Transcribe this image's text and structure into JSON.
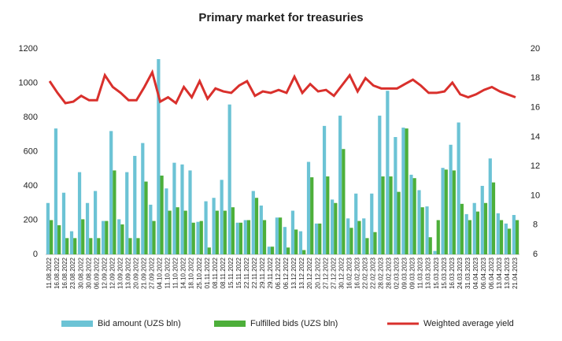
{
  "chart_data": {
    "type": "bar_line",
    "title": "Primary market for treasuries",
    "categories": [
      "11.08.2022",
      "16.08.2022",
      "16.08.2022",
      "23.08.2022",
      "30.08.2022",
      "30.08.2022",
      "06.09.2022",
      "12.09.2022",
      "12.09.2022",
      "13.09.2022",
      "13.09.2022",
      "20.09.2022",
      "21.09.2022",
      "27.09.2022",
      "04.10.2022",
      "11.10.2022",
      "11.10.2022",
      "14.10.2022",
      "18.10.2022",
      "25.10.2022",
      "01.11.2022",
      "08.11.2022",
      "08.11.2022",
      "15.11.2022",
      "15.11.2022",
      "22.11.2022",
      "22.11.2022",
      "29.11.2022",
      "29.11.2022",
      "06.12.2022",
      "06.12.2022",
      "13.12.2022",
      "13.12.2022",
      "20.12.2022",
      "20.12.2022",
      "27.12.2022",
      "27.12.2022",
      "30.12.2022",
      "16.02.2023",
      "16.02.2023",
      "22.02.2023",
      "22.02.2023",
      "28.02.2023",
      "28.02.2023",
      "02.03.2023",
      "09.03.2023",
      "09.03.2023",
      "11.03.2023",
      "13.03.2023",
      "15.03.2023",
      "15.03.2023",
      "16.03.2023",
      "24.03.2023",
      "31.03.2023",
      "04.04.2023",
      "06.04.2023",
      "06.04.2023",
      "13.04.2023",
      "13.04.2023",
      "21.04.2023"
    ],
    "series": [
      {
        "name": "Bid amount (UZS bln)",
        "color": "#6cc3d5",
        "kind": "bar",
        "values": [
          300,
          735,
          360,
          135,
          480,
          300,
          370,
          195,
          720,
          205,
          480,
          575,
          650,
          290,
          1140,
          385,
          535,
          525,
          490,
          190,
          310,
          330,
          435,
          875,
          185,
          200,
          370,
          285,
          45,
          215,
          160,
          255,
          135,
          540,
          180,
          750,
          320,
          810,
          210,
          355,
          210,
          355,
          810,
          955,
          685,
          740,
          465,
          375,
          280,
          20,
          505,
          640,
          770,
          235,
          300,
          400,
          560,
          240,
          180,
          230
        ]
      },
      {
        "name": "Fulfilled bids (UZS bln)",
        "color": "#4daf3a",
        "kind": "bar",
        "values": [
          200,
          170,
          95,
          95,
          205,
          95,
          95,
          195,
          490,
          175,
          95,
          95,
          425,
          195,
          460,
          255,
          275,
          255,
          185,
          195,
          40,
          255,
          255,
          275,
          185,
          200,
          330,
          200,
          45,
          215,
          40,
          145,
          25,
          450,
          180,
          455,
          300,
          615,
          155,
          195,
          95,
          130,
          455,
          455,
          365,
          735,
          445,
          275,
          100,
          200,
          495,
          490,
          295,
          200,
          250,
          300,
          420,
          200,
          150,
          200
        ]
      },
      {
        "name": "Weighted average yield",
        "color": "#d9302c",
        "kind": "line",
        "axis": "y2",
        "values": [
          17.8,
          17.0,
          16.3,
          16.4,
          16.8,
          16.5,
          16.5,
          18.2,
          17.4,
          17.0,
          16.5,
          16.5,
          17.4,
          18.4,
          16.4,
          16.7,
          16.3,
          17.4,
          16.7,
          17.8,
          16.6,
          17.3,
          17.1,
          17.0,
          17.5,
          17.8,
          16.8,
          17.1,
          17.0,
          17.2,
          17.0,
          18.1,
          17.0,
          17.6,
          17.1,
          17.2,
          16.8,
          17.5,
          18.2,
          17.1,
          18.0,
          17.5,
          17.3,
          17.3,
          17.3,
          17.6,
          17.9,
          17.5,
          17.0,
          17.0,
          17.1,
          17.7,
          16.9,
          16.7,
          16.9,
          17.2,
          17.4,
          17.1,
          16.9,
          16.7
        ]
      }
    ],
    "ylim": [
      0,
      1200
    ],
    "yticks": [
      0,
      200,
      400,
      600,
      800,
      1000,
      1200
    ],
    "y2lim": [
      6,
      20
    ],
    "y2ticks": [
      6,
      8,
      10,
      12,
      14,
      16,
      18,
      20
    ],
    "legend": "bottom"
  }
}
